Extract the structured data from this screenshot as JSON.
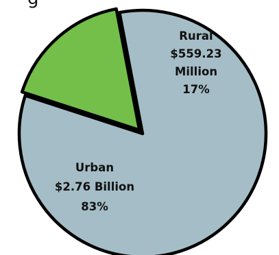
{
  "title_fragment": "g",
  "chart_data": {
    "type": "pie",
    "slices": [
      {
        "name": "Rural",
        "amount": "$559.23",
        "amount_line2": "Million",
        "percent_label": "17%",
        "value": 17,
        "color": "#73bf4a",
        "exploded": true
      },
      {
        "name": "Urban",
        "amount": "$2.76 Billion",
        "percent_label": "83%",
        "value": 83,
        "color": "#a5bdc6",
        "exploded": false
      }
    ],
    "outline_color": "#000000"
  }
}
